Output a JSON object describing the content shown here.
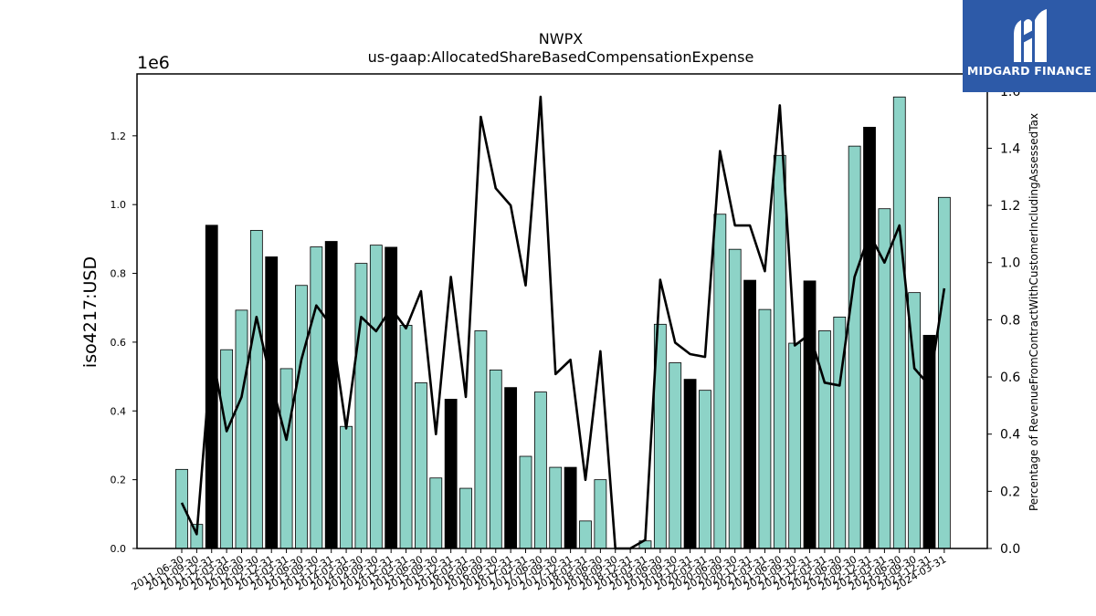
{
  "brand": {
    "name": "MIDGARD FINANCE",
    "bg_color": "#2d5aa8"
  },
  "chart_data": {
    "type": "bar",
    "title": "NWPX",
    "subtitle": "us-gaap:AllocatedShareBasedCompensationExpense",
    "ylabel": "iso4217:USD",
    "y_scale_label": "1e6",
    "y2label": "Percentage of RevenueFromContractWithCustomerIncludingAssessedTax",
    "ylim": [
      0,
      1380000
    ],
    "y2lim": [
      0,
      1.66
    ],
    "yticks": [
      "0.0",
      "0.2",
      "0.4",
      "0.6",
      "0.8",
      "1.0",
      "1.2"
    ],
    "y2ticks": [
      "0.0",
      "0.2",
      "0.4",
      "0.6",
      "0.8",
      "1.0",
      "1.2",
      "1.4",
      "1.6"
    ],
    "bar_color": "#8dd3c7",
    "highlight_color": "#000000",
    "line_color": "#000000",
    "categories": [
      "2011-06-30",
      "2011-09-30",
      "2011-12-31",
      "2012-03-31",
      "2012-06-30",
      "2012-09-30",
      "2012-12-31",
      "2013-03-31",
      "2013-06-30",
      "2013-09-30",
      "2013-12-31",
      "2014-03-31",
      "2014-06-30",
      "2014-09-30",
      "2014-12-31",
      "2015-03-31",
      "2015-06-30",
      "2015-09-30",
      "2015-12-31",
      "2016-03-31",
      "2016-06-30",
      "2016-09-30",
      "2016-12-31",
      "2017-03-31",
      "2017-06-30",
      "2017-09-30",
      "2017-12-31",
      "2018-03-31",
      "2018-06-30",
      "2018-09-30",
      "2018-12-31",
      "2019-03-31",
      "2019-06-30",
      "2019-09-30",
      "2019-12-31",
      "2020-03-31",
      "2020-06-30",
      "2020-09-30",
      "2020-12-31",
      "2021-03-31",
      "2021-06-30",
      "2021-09-30",
      "2021-12-31",
      "2022-03-31",
      "2022-06-30",
      "2022-09-30",
      "2022-12-31",
      "2023-03-31",
      "2023-06-30",
      "2023-09-30",
      "2023-12-31",
      "2024-03-31"
    ],
    "values": [
      230000,
      70000,
      940000,
      578000,
      693000,
      925000,
      848000,
      523000,
      765000,
      877000,
      893000,
      355000,
      829000,
      882000,
      876000,
      649000,
      482000,
      205000,
      434000,
      175000,
      633000,
      519000,
      468000,
      268000,
      455000,
      236000,
      236000,
      80000,
      200000,
      0,
      0,
      22000,
      652000,
      540000,
      492000,
      460000,
      972000,
      870000,
      780000,
      695000,
      1143000,
      597000,
      778000,
      633000,
      673000,
      1170000,
      1225000,
      988000,
      1313000,
      744000,
      620000,
      1021000
    ],
    "highlighted": [
      false,
      false,
      true,
      false,
      false,
      false,
      true,
      false,
      false,
      false,
      true,
      false,
      false,
      false,
      true,
      false,
      false,
      false,
      true,
      false,
      false,
      false,
      true,
      false,
      false,
      false,
      true,
      false,
      false,
      false,
      true,
      false,
      false,
      false,
      true,
      false,
      false,
      false,
      true,
      false,
      false,
      false,
      true,
      false,
      false,
      false,
      true,
      false,
      false,
      false,
      true,
      false
    ],
    "line_values": [
      0.16,
      0.05,
      0.69,
      0.41,
      0.53,
      0.81,
      0.58,
      0.38,
      0.66,
      0.85,
      0.78,
      0.42,
      0.81,
      0.76,
      0.84,
      0.77,
      0.9,
      0.4,
      0.95,
      0.53,
      1.51,
      1.26,
      1.2,
      0.92,
      1.58,
      0.61,
      0.66,
      0.24,
      0.69,
      0.0,
      0.0,
      0.03,
      0.94,
      0.72,
      0.68,
      0.67,
      1.39,
      1.13,
      1.13,
      0.97,
      1.55,
      0.71,
      0.75,
      0.58,
      0.57,
      0.95,
      1.1,
      1.0,
      1.13,
      0.63,
      0.57,
      0.91
    ]
  }
}
